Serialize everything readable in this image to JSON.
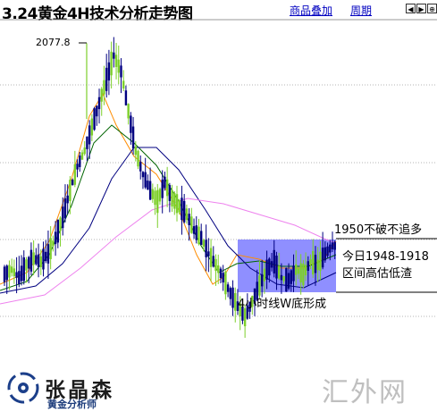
{
  "header": {
    "title": "3.24黄金4H技术分析走势图",
    "overlay_link": "商品叠加",
    "period_link": "周期",
    "nav_icons": [
      "arrow-left-icon",
      "arrow-right-icon",
      "zoom-icon"
    ]
  },
  "annotations": {
    "peak_label": "2077.8",
    "resistance_note": "1950不破不追多",
    "range_note_line1": "今日1948-1918",
    "range_note_line2": "区间高估低渣",
    "pattern_note": "4小时线W底形成"
  },
  "branding": {
    "logo_name": "张晶森",
    "logo_subtitle": "黄金分析师",
    "watermark": "汇外网"
  },
  "colors": {
    "up_candle": "#7dcf2b",
    "down_candle": "#000080",
    "ma_orange": "#ff8c00",
    "ma_green": "#006400",
    "ma_navy": "#000080",
    "ma_magenta": "#ee82ee",
    "highlight_box": "#7b7bff",
    "grid": "#b4b4b4"
  },
  "chart_data": {
    "type": "candlestick",
    "peak_value": 2077.8,
    "series": [
      {
        "values": [
          1932,
          1935,
          1930,
          1938,
          1942,
          1940,
          1945,
          1955,
          1968,
          1985,
          2000,
          2010,
          2025,
          2040,
          2055,
          2070,
          2060,
          2035,
          2010,
          1995,
          1985,
          1978,
          1990,
          1980,
          1975,
          1970,
          1960,
          1955,
          1945,
          1938,
          1930,
          1920,
          1912,
          1905,
          1915,
          1925,
          1935,
          1940,
          1930,
          1928,
          1935,
          1932,
          1940,
          1938,
          1945,
          1950
        ]
      }
    ]
  }
}
